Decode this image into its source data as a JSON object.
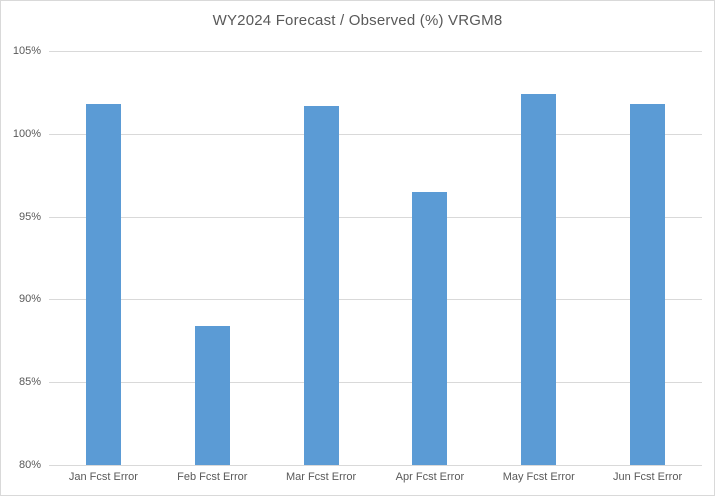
{
  "chart_data": {
    "type": "bar",
    "title": "WY2024 Forecast / Observed (%) VRGM8",
    "categories": [
      "Jan Fcst Error",
      "Feb Fcst Error",
      "Mar Fcst Error",
      "Apr Fcst Error",
      "May Fcst Error",
      "Jun Fcst Error"
    ],
    "values": [
      101.8,
      88.4,
      101.7,
      96.5,
      102.4,
      101.8
    ],
    "unit": "%",
    "xlabel": "",
    "ylabel": "",
    "ylim": [
      80,
      105
    ],
    "ytick_step": 5,
    "ytick_labels": [
      "105%",
      "100%",
      "95%",
      "90%",
      "85%",
      "80%"
    ],
    "grid": true,
    "legend": false,
    "colors": {
      "bar": "#5b9bd5",
      "gridline": "#d9d9d9",
      "axis_line": "#d9d9d9",
      "text": "#595959",
      "frame_border": "#d9d9d9",
      "background": "#ffffff"
    }
  }
}
